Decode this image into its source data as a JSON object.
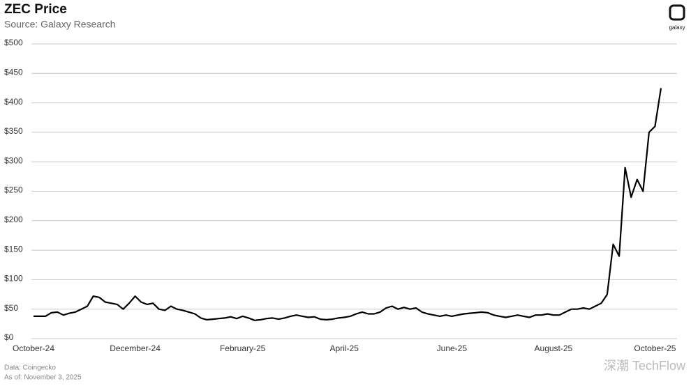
{
  "chart_data": {
    "type": "line",
    "title": "ZEC Price",
    "subtitle": "Source: Galaxy Research",
    "logo": "galaxy",
    "notes": [
      "Data: Coingecko",
      "As of: November 3, 2025"
    ],
    "watermark": "深潮 TechFlow",
    "categories": [
      "October-24",
      null,
      null,
      null,
      null,
      null,
      null,
      null,
      null,
      null,
      null,
      null,
      null,
      null,
      null,
      null,
      null,
      "December-24",
      null,
      null,
      null,
      null,
      null,
      null,
      null,
      null,
      null,
      null,
      null,
      null,
      null,
      null,
      null,
      null,
      null,
      "February-25",
      null,
      null,
      null,
      null,
      null,
      null,
      null,
      null,
      null,
      null,
      null,
      null,
      null,
      null,
      null,
      null,
      "April-25",
      null,
      null,
      null,
      null,
      null,
      null,
      null,
      null,
      null,
      null,
      null,
      null,
      null,
      null,
      null,
      null,
      null,
      "June-25",
      null,
      null,
      null,
      null,
      null,
      null,
      null,
      null,
      null,
      null,
      null,
      null,
      null,
      null,
      null,
      null,
      "August-25",
      null,
      null,
      null,
      null,
      null,
      null,
      null,
      null,
      null,
      null,
      null,
      null,
      null,
      null,
      null,
      null,
      "October-25",
      null
    ],
    "series": [
      {
        "name": "ZEC",
        "color": "#000000",
        "values": [
          38,
          38,
          38,
          44,
          45,
          40,
          43,
          45,
          50,
          55,
          72,
          70,
          62,
          60,
          58,
          50,
          60,
          72,
          62,
          58,
          60,
          50,
          48,
          55,
          50,
          48,
          45,
          42,
          35,
          32,
          33,
          34,
          35,
          37,
          34,
          38,
          35,
          31,
          32,
          34,
          35,
          33,
          35,
          38,
          40,
          38,
          36,
          37,
          33,
          32,
          33,
          35,
          36,
          38,
          42,
          45,
          42,
          42,
          45,
          52,
          55,
          50,
          53,
          50,
          52,
          45,
          42,
          40,
          38,
          40,
          38,
          40,
          42,
          43,
          44,
          45,
          44,
          40,
          38,
          36,
          38,
          40,
          38,
          36,
          40,
          40,
          42,
          40,
          40,
          45,
          50,
          50,
          52,
          50,
          55,
          60,
          75,
          160,
          140,
          290,
          240,
          270,
          250,
          350,
          360,
          425
        ]
      }
    ],
    "ylim": [
      0,
      500
    ],
    "yticks": [
      {
        "value": 0,
        "label": "$0"
      },
      {
        "value": 50,
        "label": "$50"
      },
      {
        "value": 100,
        "label": "$100"
      },
      {
        "value": 150,
        "label": "$150"
      },
      {
        "value": 200,
        "label": "$200"
      },
      {
        "value": 250,
        "label": "$250"
      },
      {
        "value": 300,
        "label": "$300"
      },
      {
        "value": 350,
        "label": "$350"
      },
      {
        "value": 400,
        "label": "$400"
      },
      {
        "value": 450,
        "label": "$450"
      },
      {
        "value": 500,
        "label": "$500"
      }
    ],
    "grid": true
  }
}
